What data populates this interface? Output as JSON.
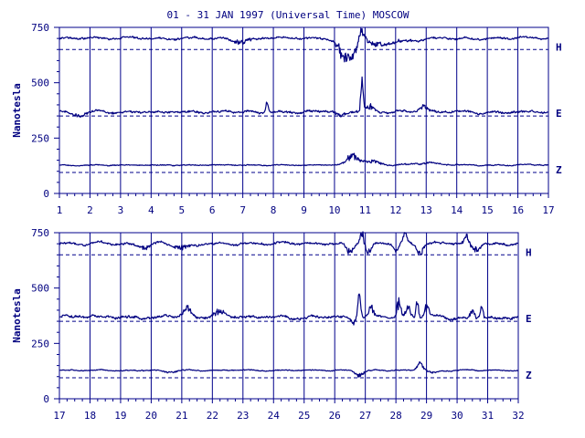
{
  "chart_data": [
    {
      "type": "line",
      "title": "01 - 31 JAN 1997 (Universal Time) MOSCOW",
      "ylabel": "Nanotesla",
      "x_ticks": [
        "1",
        "2",
        "3",
        "4",
        "5",
        "6",
        "7",
        "8",
        "9",
        "10",
        "11",
        "12",
        "13",
        "14",
        "15",
        "16",
        "17"
      ],
      "xlim": [
        1,
        17
      ],
      "ylim": [
        0,
        750
      ],
      "y_ticks": [
        "0",
        "250",
        "500",
        "750"
      ],
      "series": [
        {
          "name": "H",
          "baseline": 650,
          "level": 700,
          "noise": 6,
          "events": [
            {
              "day": 7.0,
              "amp": -20,
              "width": 0.4
            },
            {
              "day": 10.3,
              "amp": -70,
              "width": 0.25
            },
            {
              "day": 10.6,
              "amp": -50,
              "width": 0.2
            },
            {
              "day": 10.9,
              "amp": 45,
              "width": 0.15
            },
            {
              "day": 11.3,
              "amp": -25,
              "width": 0.5
            },
            {
              "day": 12.2,
              "amp": -15,
              "width": 0.6
            }
          ]
        },
        {
          "name": "E",
          "baseline": 350,
          "level": 368,
          "noise": 7,
          "events": [
            {
              "day": 1.6,
              "amp": -12,
              "width": 0.3
            },
            {
              "day": 7.8,
              "amp": 45,
              "width": 0.06
            },
            {
              "day": 10.2,
              "amp": -20,
              "width": 0.15
            },
            {
              "day": 10.9,
              "amp": 110,
              "width": 0.05
            },
            {
              "day": 11.1,
              "amp": 25,
              "width": 0.3
            },
            {
              "day": 12.9,
              "amp": 25,
              "width": 0.2
            }
          ]
        },
        {
          "name": "Z",
          "baseline": 95,
          "level": 128,
          "noise": 3,
          "events": [
            {
              "day": 10.6,
              "amp": 40,
              "width": 0.25
            },
            {
              "day": 11.2,
              "amp": 15,
              "width": 0.4
            },
            {
              "day": 13.0,
              "amp": 8,
              "width": 0.8
            }
          ]
        }
      ]
    },
    {
      "type": "line",
      "ylabel": "Nanotesla",
      "x_ticks": [
        "17",
        "18",
        "19",
        "20",
        "21",
        "22",
        "23",
        "24",
        "25",
        "26",
        "27",
        "28",
        "29",
        "30",
        "31",
        "32"
      ],
      "xlim": [
        17,
        32
      ],
      "ylim": [
        0,
        750
      ],
      "y_ticks": [
        "0",
        "250",
        "500",
        "750"
      ],
      "series": [
        {
          "name": "H",
          "baseline": 650,
          "level": 700,
          "noise": 7,
          "events": [
            {
              "day": 19.8,
              "amp": -20,
              "width": 0.3
            },
            {
              "day": 21.0,
              "amp": -22,
              "width": 0.4
            },
            {
              "day": 26.5,
              "amp": -40,
              "width": 0.15
            },
            {
              "day": 26.9,
              "amp": 45,
              "width": 0.08
            },
            {
              "day": 27.1,
              "amp": -35,
              "width": 0.15
            },
            {
              "day": 28.0,
              "amp": -40,
              "width": 0.12
            },
            {
              "day": 28.3,
              "amp": 40,
              "width": 0.08
            },
            {
              "day": 28.8,
              "amp": -35,
              "width": 0.15
            },
            {
              "day": 30.3,
              "amp": 35,
              "width": 0.1
            },
            {
              "day": 30.6,
              "amp": -25,
              "width": 0.2
            }
          ]
        },
        {
          "name": "E",
          "baseline": 350,
          "level": 368,
          "noise": 8,
          "events": [
            {
              "day": 21.2,
              "amp": 35,
              "width": 0.15
            },
            {
              "day": 22.2,
              "amp": 20,
              "width": 0.3
            },
            {
              "day": 26.6,
              "amp": -25,
              "width": 0.1
            },
            {
              "day": 26.8,
              "amp": 110,
              "width": 0.06
            },
            {
              "day": 27.2,
              "amp": 40,
              "width": 0.1
            },
            {
              "day": 28.1,
              "amp": 70,
              "width": 0.08
            },
            {
              "day": 28.4,
              "amp": 40,
              "width": 0.12
            },
            {
              "day": 28.7,
              "amp": 75,
              "width": 0.06
            },
            {
              "day": 29.0,
              "amp": 40,
              "width": 0.12
            },
            {
              "day": 30.5,
              "amp": 35,
              "width": 0.1
            },
            {
              "day": 30.8,
              "amp": 50,
              "width": 0.08
            }
          ]
        },
        {
          "name": "Z",
          "baseline": 95,
          "level": 128,
          "noise": 3,
          "events": [
            {
              "day": 20.6,
              "amp": -10,
              "width": 0.3
            },
            {
              "day": 26.8,
              "amp": -20,
              "width": 0.2
            },
            {
              "day": 28.8,
              "amp": 30,
              "width": 0.15
            },
            {
              "day": 29.2,
              "amp": -10,
              "width": 0.2
            }
          ]
        }
      ]
    }
  ],
  "colors": {
    "axis": "#00008b",
    "trace": "#000080",
    "text": "#000080",
    "background": "#ffffff"
  }
}
